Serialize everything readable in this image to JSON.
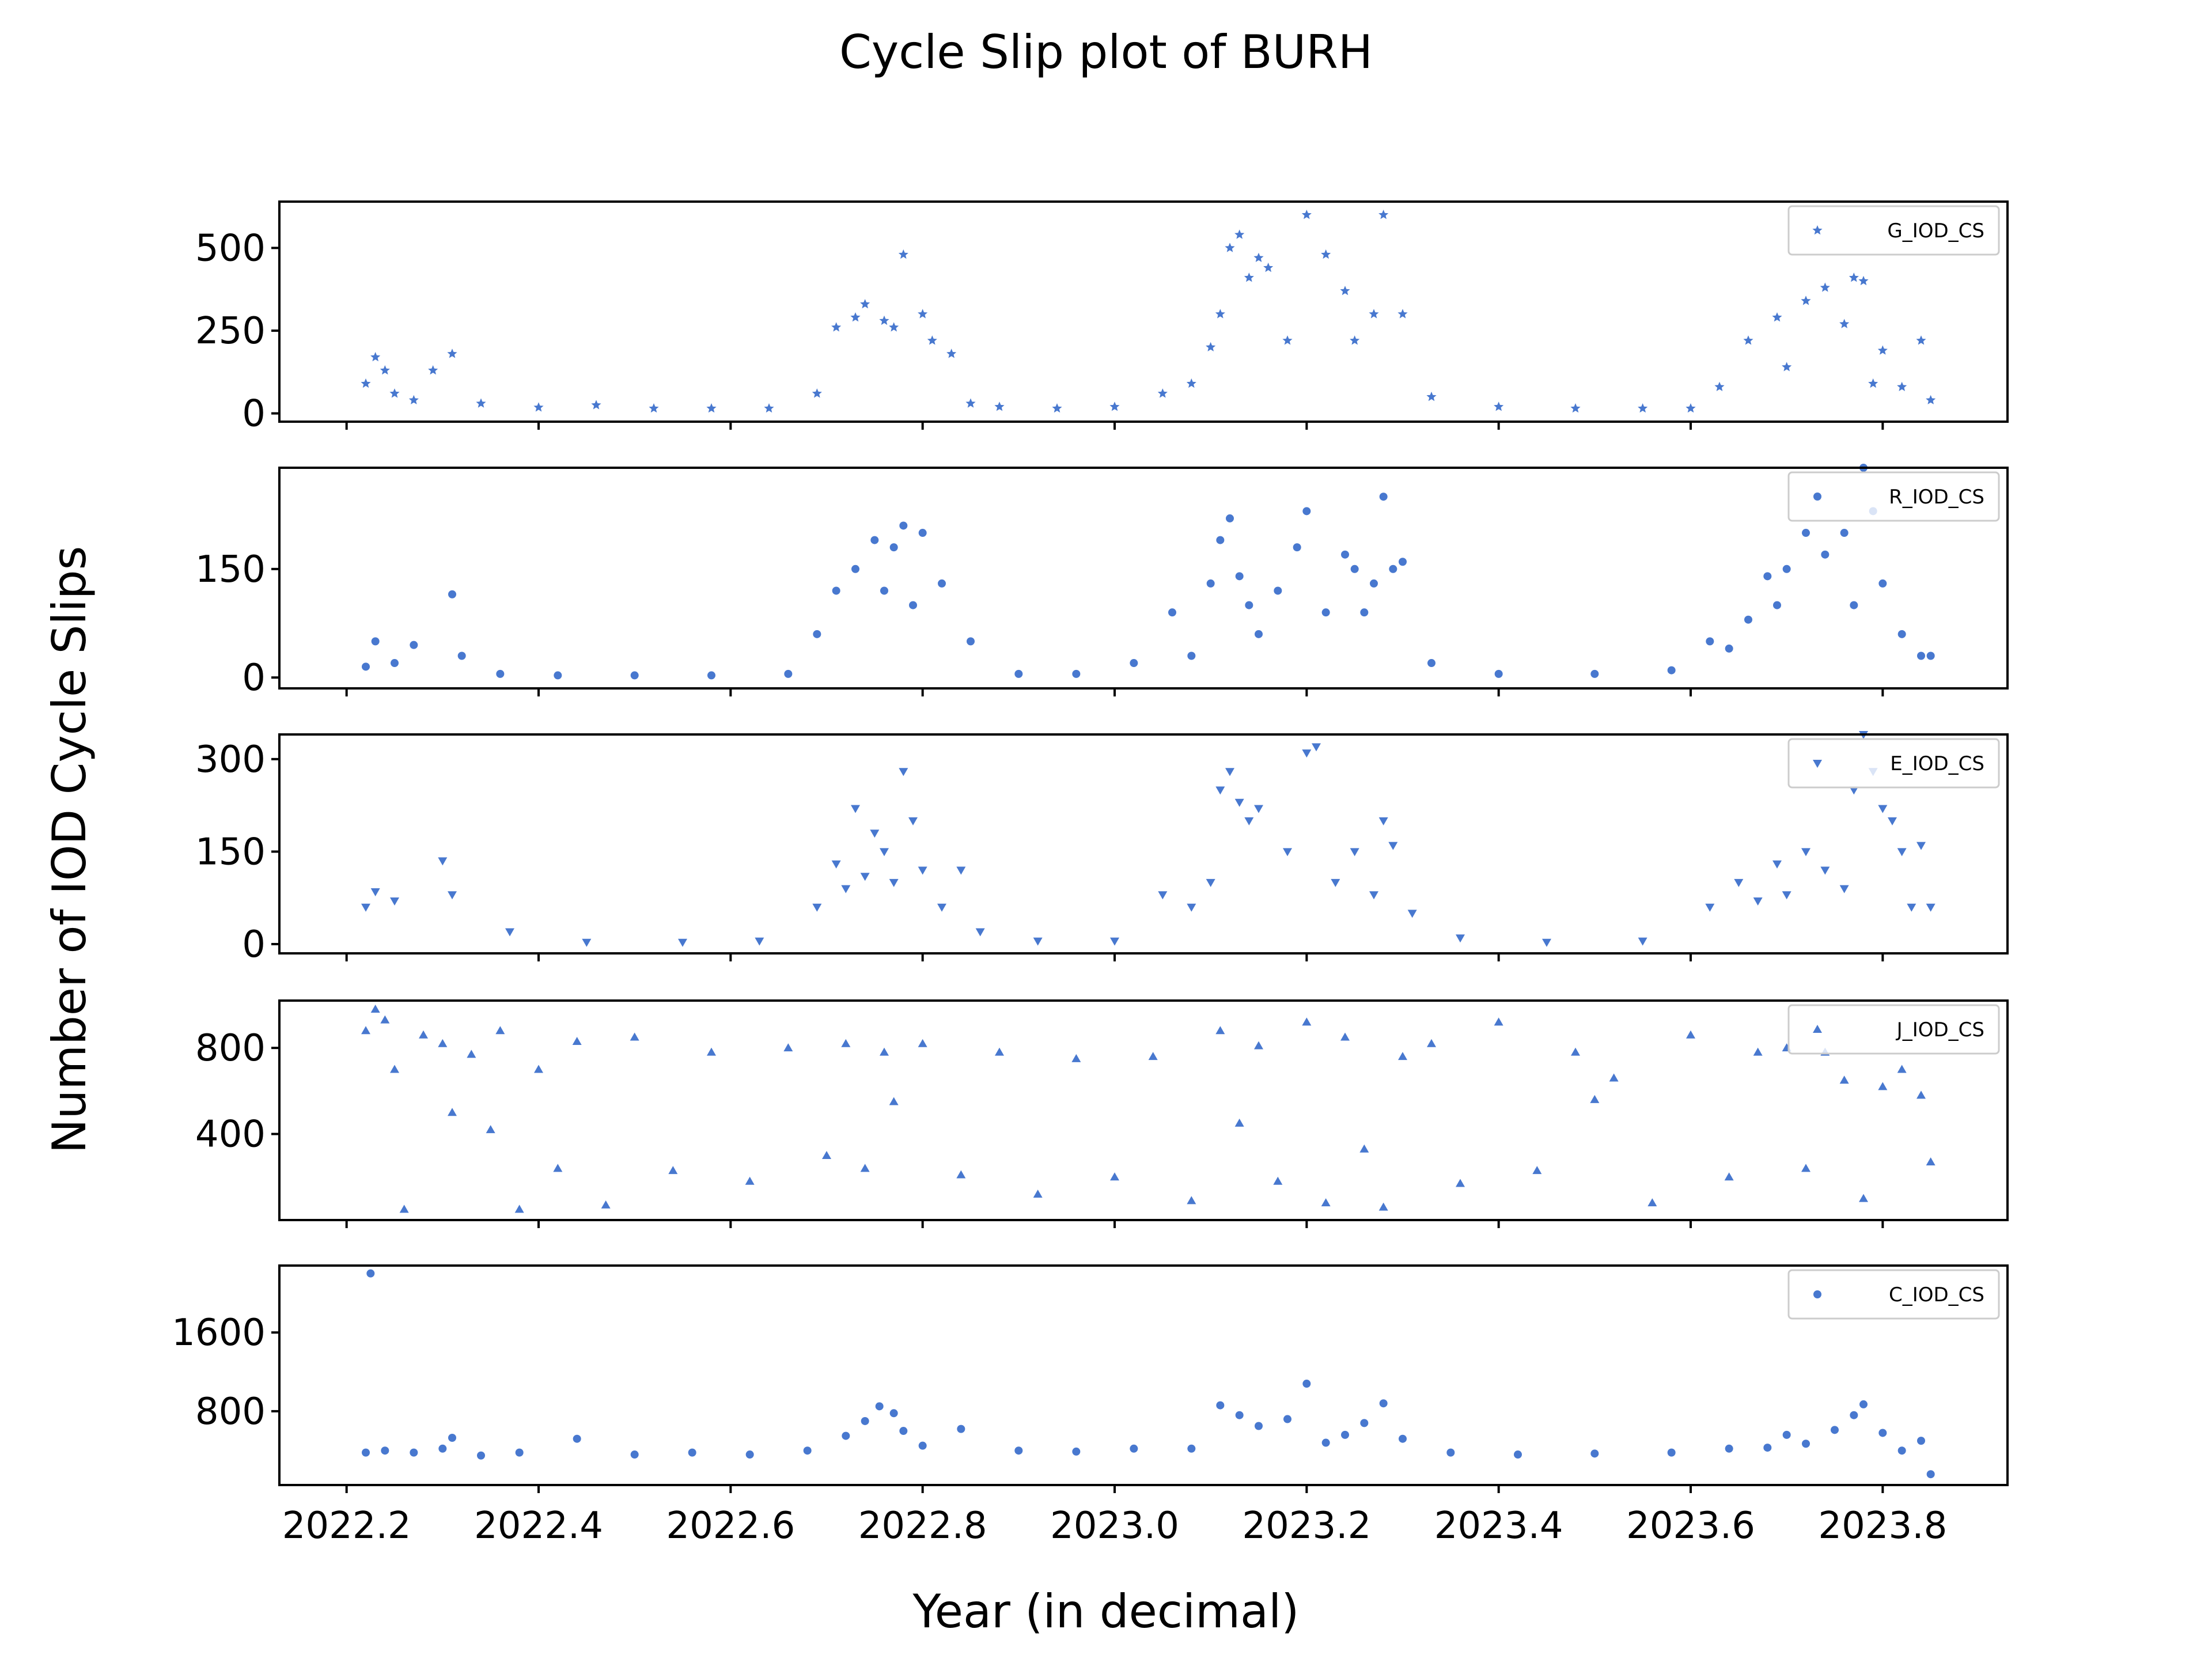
{
  "chart_data": {
    "type": "scatter",
    "title": "Cycle Slip plot of BURH",
    "xlabel": "Year (in decimal)",
    "ylabel": "Number of IOD Cycle Slips",
    "xlim": [
      2022.13,
      2023.93
    ],
    "x_ticks": [
      2022.2,
      2022.4,
      2022.6,
      2022.8,
      2023.0,
      2023.2,
      2023.4,
      2023.6,
      2023.8
    ],
    "x_tick_labels": [
      "2022.2",
      "2022.4",
      "2022.6",
      "2022.8",
      "2023.0",
      "2023.2",
      "2023.4",
      "2023.6",
      "2023.8"
    ],
    "color": "#4878cf",
    "grid": false,
    "legend_placement": "top-right",
    "subplots": [
      {
        "name": "G_IOD_CS",
        "marker": "star",
        "ylim": [
          -25,
          640
        ],
        "y_ticks": [
          0,
          250,
          500
        ],
        "y_tick_labels": [
          "0",
          "250",
          "500"
        ],
        "x": [
          2022.22,
          2022.23,
          2022.24,
          2022.25,
          2022.27,
          2022.29,
          2022.31,
          2022.34,
          2022.4,
          2022.46,
          2022.52,
          2022.58,
          2022.64,
          2022.69,
          2022.71,
          2022.73,
          2022.74,
          2022.76,
          2022.77,
          2022.78,
          2022.8,
          2022.81,
          2022.83,
          2022.85,
          2022.88,
          2022.94,
          2023.0,
          2023.05,
          2023.08,
          2023.1,
          2023.11,
          2023.12,
          2023.13,
          2023.14,
          2023.15,
          2023.16,
          2023.18,
          2023.2,
          2023.22,
          2023.24,
          2023.25,
          2023.27,
          2023.28,
          2023.3,
          2023.33,
          2023.4,
          2023.48,
          2023.55,
          2023.6,
          2023.63,
          2023.66,
          2023.69,
          2023.7,
          2023.72,
          2023.74,
          2023.76,
          2023.77,
          2023.78,
          2023.79,
          2023.8,
          2023.82,
          2023.84,
          2023.85
        ],
        "y": [
          90,
          170,
          130,
          60,
          40,
          130,
          180,
          30,
          18,
          25,
          15,
          15,
          15,
          60,
          260,
          290,
          330,
          280,
          260,
          480,
          300,
          220,
          180,
          30,
          20,
          15,
          20,
          60,
          90,
          200,
          300,
          500,
          540,
          410,
          470,
          440,
          220,
          600,
          480,
          370,
          220,
          300,
          600,
          300,
          50,
          20,
          15,
          15,
          15,
          80,
          220,
          290,
          140,
          340,
          380,
          270,
          410,
          400,
          90,
          190,
          80,
          220,
          40
        ]
      },
      {
        "name": "R_IOD_CS",
        "marker": "circle",
        "ylim": [
          -15,
          290
        ],
        "y_ticks": [
          0,
          150
        ],
        "y_tick_labels": [
          "0",
          "150"
        ],
        "x": [
          2022.22,
          2022.23,
          2022.25,
          2022.27,
          2022.31,
          2022.32,
          2022.36,
          2022.42,
          2022.5,
          2022.58,
          2022.66,
          2022.69,
          2022.71,
          2022.73,
          2022.75,
          2022.76,
          2022.77,
          2022.78,
          2022.79,
          2022.8,
          2022.82,
          2022.85,
          2022.9,
          2022.96,
          2023.02,
          2023.06,
          2023.08,
          2023.1,
          2023.11,
          2023.12,
          2023.13,
          2023.14,
          2023.15,
          2023.17,
          2023.19,
          2023.2,
          2023.22,
          2023.24,
          2023.25,
          2023.26,
          2023.27,
          2023.28,
          2023.29,
          2023.3,
          2023.33,
          2023.4,
          2023.5,
          2023.58,
          2023.62,
          2023.64,
          2023.66,
          2023.68,
          2023.69,
          2023.7,
          2023.72,
          2023.74,
          2023.76,
          2023.77,
          2023.78,
          2023.79,
          2023.8,
          2023.82,
          2023.84,
          2023.85
        ],
        "y": [
          15,
          50,
          20,
          45,
          115,
          30,
          5,
          3,
          3,
          3,
          5,
          60,
          120,
          150,
          190,
          120,
          180,
          210,
          100,
          200,
          130,
          50,
          5,
          5,
          20,
          90,
          30,
          130,
          190,
          220,
          140,
          100,
          60,
          120,
          180,
          230,
          90,
          170,
          150,
          90,
          130,
          250,
          150,
          160,
          20,
          5,
          5,
          10,
          50,
          40,
          80,
          140,
          100,
          150,
          200,
          170,
          200,
          100,
          290,
          230,
          130,
          60,
          30,
          30
        ]
      },
      {
        "name": "E_IOD_CS",
        "marker": "triangle-down",
        "ylim": [
          -15,
          340
        ],
        "y_ticks": [
          0,
          150,
          300
        ],
        "y_tick_labels": [
          "0",
          "150",
          "300"
        ],
        "x": [
          2022.22,
          2022.23,
          2022.25,
          2022.3,
          2022.31,
          2022.37,
          2022.45,
          2022.55,
          2022.63,
          2022.69,
          2022.71,
          2022.72,
          2022.73,
          2022.74,
          2022.75,
          2022.76,
          2022.77,
          2022.78,
          2022.79,
          2022.8,
          2022.82,
          2022.84,
          2022.86,
          2022.92,
          2023.0,
          2023.05,
          2023.08,
          2023.1,
          2023.11,
          2023.12,
          2023.13,
          2023.14,
          2023.15,
          2023.18,
          2023.2,
          2023.21,
          2023.23,
          2023.25,
          2023.27,
          2023.28,
          2023.29,
          2023.31,
          2023.36,
          2023.45,
          2023.55,
          2023.62,
          2023.65,
          2023.67,
          2023.69,
          2023.7,
          2023.72,
          2023.74,
          2023.76,
          2023.77,
          2023.78,
          2023.79,
          2023.8,
          2023.81,
          2023.82,
          2023.83,
          2023.84,
          2023.85
        ],
        "y": [
          60,
          85,
          70,
          135,
          80,
          20,
          3,
          3,
          5,
          60,
          130,
          90,
          220,
          110,
          180,
          150,
          100,
          280,
          200,
          120,
          60,
          120,
          20,
          5,
          5,
          80,
          60,
          100,
          250,
          280,
          230,
          200,
          220,
          150,
          310,
          320,
          100,
          150,
          80,
          200,
          160,
          50,
          10,
          3,
          5,
          60,
          100,
          70,
          130,
          80,
          150,
          120,
          90,
          250,
          340,
          280,
          220,
          200,
          150,
          60,
          160,
          60
        ]
      },
      {
        "name": "J_IOD_CS",
        "marker": "triangle-up",
        "ylim": [
          0,
          1020
        ],
        "y_ticks": [
          400,
          800
        ],
        "y_tick_labels": [
          "400",
          "800"
        ],
        "x": [
          2022.22,
          2022.23,
          2022.24,
          2022.25,
          2022.26,
          2022.28,
          2022.3,
          2022.31,
          2022.33,
          2022.35,
          2022.36,
          2022.38,
          2022.4,
          2022.42,
          2022.44,
          2022.47,
          2022.5,
          2022.54,
          2022.58,
          2022.62,
          2022.66,
          2022.7,
          2022.72,
          2022.74,
          2022.76,
          2022.77,
          2022.8,
          2022.84,
          2022.88,
          2022.92,
          2022.96,
          2023.0,
          2023.04,
          2023.08,
          2023.11,
          2023.13,
          2023.15,
          2023.17,
          2023.2,
          2023.22,
          2023.24,
          2023.26,
          2023.28,
          2023.3,
          2023.33,
          2023.36,
          2023.4,
          2023.44,
          2023.48,
          2023.5,
          2023.52,
          2023.56,
          2023.6,
          2023.64,
          2023.67,
          2023.7,
          2023.72,
          2023.74,
          2023.76,
          2023.78,
          2023.8,
          2023.82,
          2023.84,
          2023.85
        ],
        "y": [
          880,
          980,
          930,
          700,
          50,
          860,
          820,
          500,
          770,
          420,
          880,
          50,
          700,
          240,
          830,
          70,
          850,
          230,
          780,
          180,
          800,
          300,
          820,
          240,
          780,
          550,
          820,
          210,
          780,
          120,
          750,
          200,
          760,
          90,
          880,
          450,
          810,
          180,
          920,
          80,
          850,
          330,
          60,
          760,
          820,
          170,
          920,
          230,
          780,
          560,
          660,
          80,
          860,
          200,
          780,
          800,
          240,
          780,
          650,
          100,
          620,
          700,
          580,
          270
        ]
      },
      {
        "name": "C_IOD_CS",
        "marker": "circle",
        "ylim": [
          50,
          2280
        ],
        "y_ticks": [
          800,
          1600
        ],
        "y_tick_labels": [
          "800",
          "1600"
        ],
        "x": [
          2022.22,
          2022.225,
          2022.24,
          2022.27,
          2022.3,
          2022.31,
          2022.34,
          2022.38,
          2022.44,
          2022.5,
          2022.56,
          2022.62,
          2022.68,
          2022.72,
          2022.74,
          2022.755,
          2022.77,
          2022.78,
          2022.8,
          2022.84,
          2022.9,
          2022.96,
          2023.02,
          2023.08,
          2023.11,
          2023.13,
          2023.15,
          2023.18,
          2023.2,
          2023.22,
          2023.24,
          2023.26,
          2023.28,
          2023.3,
          2023.35,
          2023.42,
          2023.5,
          2023.58,
          2023.64,
          2023.68,
          2023.7,
          2023.72,
          2023.75,
          2023.77,
          2023.78,
          2023.8,
          2023.82,
          2023.84,
          2023.85
        ],
        "y": [
          380,
          2200,
          400,
          380,
          420,
          530,
          350,
          380,
          520,
          360,
          380,
          360,
          400,
          550,
          700,
          850,
          780,
          600,
          450,
          620,
          400,
          390,
          420,
          420,
          860,
          760,
          650,
          720,
          1080,
          480,
          560,
          680,
          880,
          520,
          380,
          360,
          370,
          380,
          420,
          430,
          560,
          470,
          610,
          760,
          870,
          580,
          400,
          500,
          160
        ]
      }
    ]
  }
}
